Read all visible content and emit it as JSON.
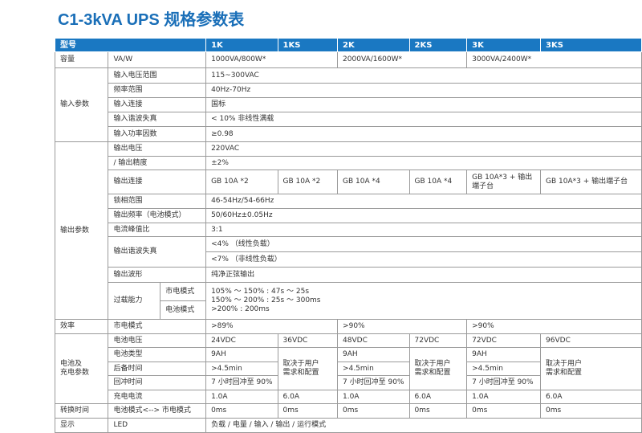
{
  "title": "C1-3kVA UPS 规格参数表",
  "header": {
    "model": "型号",
    "cols": [
      "1K",
      "1KS",
      "2K",
      "2KS",
      "3K",
      "3KS"
    ]
  },
  "capacity": {
    "group": "容量",
    "label": "VA/W",
    "values": [
      "1000VA/800W*",
      "2000VA/1600W*",
      "3000VA/2400W*"
    ]
  },
  "input": {
    "group": "输入参数",
    "rows": [
      {
        "label": "输入电压范围",
        "value": "115~300VAC"
      },
      {
        "label": "频率范围",
        "value": "40Hz-70Hz"
      },
      {
        "label": "输入连接",
        "value": "国标"
      },
      {
        "label": "输入谐波失真",
        "value": "< 10% 非线性满载"
      },
      {
        "label": "输入功率因数",
        "value": "≥0.98"
      }
    ]
  },
  "output": {
    "group": "输出参数",
    "voltage": {
      "label": "输出电压",
      "value": "220VAC"
    },
    "precision": {
      "label": "/ 输出精度",
      "value": "±2%"
    },
    "connection": {
      "label": "输出连接",
      "values": [
        "GB 10A *2",
        "GB 10A *2",
        "GB 10A *4",
        "GB 10A *4",
        "GB 10A*3 + 输出端子台",
        "GB 10A*3 + 输出端子台"
      ]
    },
    "lock": {
      "label": "锁相范围",
      "value": "46-54Hz/54-66Hz"
    },
    "freq": {
      "label": "输出频率（电池模式）",
      "value": "50/60Hz±0.05Hz"
    },
    "crest": {
      "label": "电流峰值比",
      "value": "3:1"
    },
    "thd": {
      "label": "输出谐波失真",
      "values": [
        "<4% （线性负载）",
        "<7% （非线性负载）"
      ]
    },
    "waveform": {
      "label": "输出波形",
      "value": "纯净正弦输出"
    },
    "overload": {
      "label": "过载能力",
      "modes": [
        "市电模式",
        "电池模式"
      ],
      "lines": [
        "105% ～ 150% : 47s ～ 25s",
        "150% ～ 200% : 25s ～ 300ms",
        ">200% : 200ms"
      ]
    }
  },
  "efficiency": {
    "group": "效率",
    "label": "市电模式",
    "values": [
      ">89%",
      ">90%",
      ">90%"
    ]
  },
  "battery": {
    "group": "电池及充电参数",
    "group_lines": [
      "电池及",
      "充电参数"
    ],
    "voltage": {
      "label": "电池电压",
      "values": [
        "24VDC",
        "36VDC",
        "48VDC",
        "72VDC",
        "72VDC",
        "96VDC"
      ]
    },
    "type": {
      "label": "电池类型",
      "value": "9AH"
    },
    "backup": {
      "label": "后备时间",
      "value": ">4.5min"
    },
    "recharge": {
      "label": "回冲时间",
      "value": "7 小时回冲至 90%"
    },
    "depends_lines": [
      "取决于用户",
      "需求和配置"
    ],
    "current": {
      "label": "充电电流",
      "values": [
        "1.0A",
        "6.0A",
        "1.0A",
        "6.0A",
        "1.0A",
        "6.0A"
      ]
    }
  },
  "transfer": {
    "group": "转换时间",
    "label": "电池模式<--> 市电模式",
    "values": [
      "0ms",
      "0ms",
      "0ms",
      "0ms",
      "0ms",
      "0ms"
    ]
  },
  "display": {
    "group": "显示",
    "label": "LED",
    "value": "负载 / 电量 / 输入 / 输出 / 运行模式"
  }
}
